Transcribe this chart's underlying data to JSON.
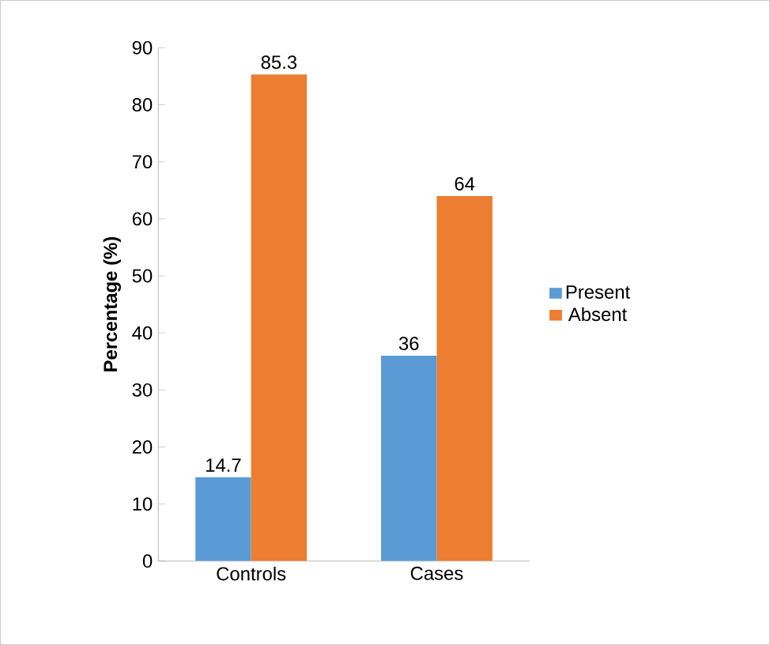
{
  "chart_data": {
    "type": "bar",
    "ylabel": "Percentage (%)",
    "categories": [
      "Controls",
      "Cases"
    ],
    "series": [
      {
        "name": "Present",
        "color": "#5b9bd5",
        "values": [
          14.7,
          36
        ]
      },
      {
        "name": "Absent",
        "color": "#ed7d31",
        "values": [
          85.3,
          64
        ]
      }
    ],
    "ylim": [
      0,
      90
    ],
    "yticks": [
      0,
      10,
      20,
      30,
      40,
      50,
      60,
      70,
      80,
      90
    ],
    "data_labels": true,
    "legend": "right",
    "grid": false
  }
}
